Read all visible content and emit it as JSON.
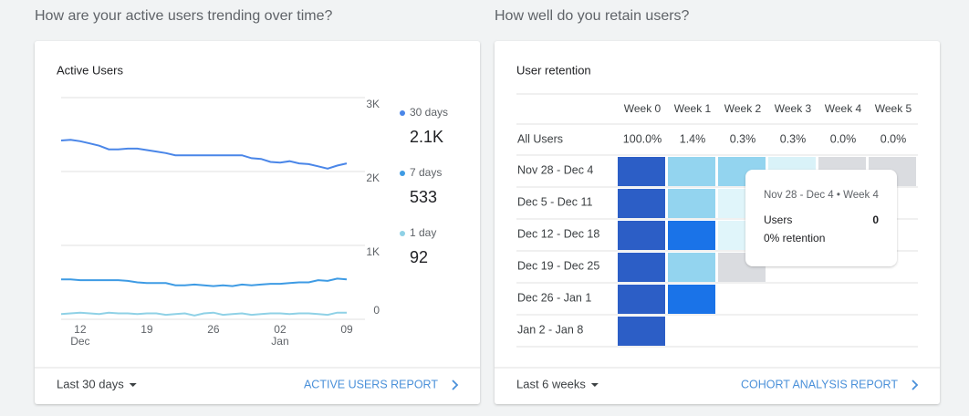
{
  "left": {
    "heading": "How are your active users trending over time?",
    "card_title": "Active Users",
    "chart_data": {
      "type": "line",
      "categories": [
        null,
        null,
        "12",
        null,
        null,
        null,
        null,
        null,
        null,
        "19",
        null,
        null,
        null,
        null,
        null,
        null,
        "26",
        null,
        null,
        null,
        null,
        null,
        null,
        "02",
        null,
        null,
        null,
        null,
        null,
        null,
        "09"
      ],
      "month_labels": [
        null,
        null,
        "Dec",
        null,
        null,
        null,
        null,
        null,
        null,
        null,
        null,
        null,
        null,
        null,
        null,
        null,
        null,
        null,
        null,
        null,
        null,
        null,
        null,
        "Jan",
        null,
        null,
        null,
        null,
        null,
        null,
        null
      ],
      "series": [
        {
          "name": "30 days",
          "color": "#4a86e8",
          "summary": "2.1K",
          "values": [
            2420,
            2430,
            2410,
            2380,
            2350,
            2300,
            2300,
            2310,
            2310,
            2290,
            2270,
            2250,
            2220,
            2220,
            2220,
            2220,
            2220,
            2220,
            2220,
            2220,
            2180,
            2170,
            2130,
            2120,
            2140,
            2110,
            2100,
            2070,
            2040,
            2080,
            2110
          ]
        },
        {
          "name": "7 days",
          "color": "#3e9be4",
          "summary": "533",
          "values": [
            540,
            540,
            530,
            530,
            530,
            530,
            530,
            520,
            500,
            490,
            490,
            490,
            460,
            460,
            470,
            460,
            450,
            460,
            450,
            470,
            460,
            470,
            480,
            480,
            490,
            500,
            500,
            530,
            520,
            550,
            540
          ]
        },
        {
          "name": "1 day",
          "color": "#8fd1e6",
          "summary": "92",
          "values": [
            70,
            80,
            90,
            80,
            70,
            90,
            80,
            80,
            70,
            80,
            80,
            60,
            70,
            80,
            50,
            80,
            90,
            60,
            70,
            80,
            60,
            70,
            80,
            80,
            70,
            80,
            80,
            70,
            60,
            90,
            90
          ]
        }
      ],
      "ylim": [
        0,
        3000
      ],
      "yticks": [
        0,
        {
          "value": 1000,
          "label": "1K"
        },
        {
          "value": 2000,
          "label": "2K"
        },
        {
          "value": 3000,
          "label": "3K"
        }
      ],
      "grid": true
    },
    "footer": {
      "range": "Last 30 days",
      "link": "ACTIVE USERS REPORT"
    }
  },
  "right": {
    "heading": "How well do you retain users?",
    "card_title": "User retention",
    "columns": [
      "Week 0",
      "Week 1",
      "Week 2",
      "Week 3",
      "Week 4",
      "Week 5"
    ],
    "all_users": {
      "label": "All Users",
      "values": [
        "100.0%",
        "1.4%",
        "0.3%",
        "0.3%",
        "0.0%",
        "0.0%"
      ]
    },
    "cohorts": [
      {
        "label": "Nov 28 - Dec 4",
        "cells": [
          "#2c5ec6",
          "#93d4ef",
          "#93d4ef",
          "#d9f2f8",
          "#dadce0",
          "#dadce0"
        ]
      },
      {
        "label": "Dec 5 - Dec 11",
        "cells": [
          "#2c5ec6",
          "#93d4ef",
          "#e0f5fa",
          "#e0f5fa",
          "#dadce0"
        ]
      },
      {
        "label": "Dec 12 - Dec 18",
        "cells": [
          "#2c5ec6",
          "#1a73e8",
          "#e0f5fa",
          "#e0f5fa"
        ]
      },
      {
        "label": "Dec 19 - Dec 25",
        "cells": [
          "#2c5ec6",
          "#93d4ef",
          "#dadce0"
        ]
      },
      {
        "label": "Dec 26 - Jan 1",
        "cells": [
          "#2c5ec6",
          "#1a73e8"
        ]
      },
      {
        "label": "Jan 2 - Jan 8",
        "cells": [
          "#2c5ec6"
        ]
      }
    ],
    "tooltip": {
      "title": "Nov 28 - Dec 4 • Week 4",
      "metric": "Users",
      "value": "0",
      "note": "0% retention"
    },
    "footer": {
      "range": "Last 6 weeks",
      "link": "COHORT ANALYSIS REPORT"
    }
  }
}
